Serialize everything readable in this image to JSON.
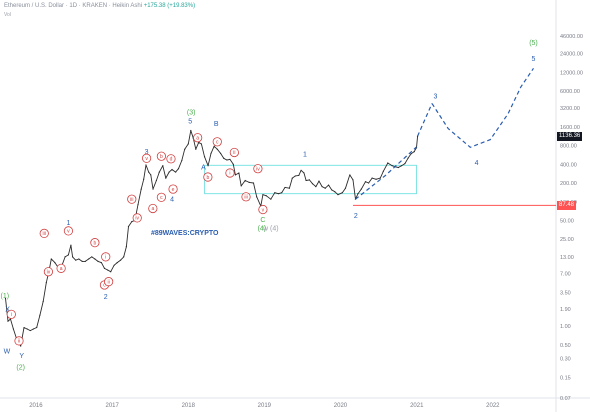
{
  "header": {
    "title": "Ethereum / U.S. Dollar · 1D · KRAKEN · Heikin Ashi",
    "change": "+175.38 (+19.83%)",
    "sub_label": "Vol"
  },
  "colors": {
    "price_line": "#2b2b2b",
    "wave_blue": "#2a5db0",
    "wave_red": "#d23c3c",
    "wave_green": "#4caf50",
    "channel_box": "#7fe3e3",
    "support_line": "#ff5252",
    "last_price_tag": "#131722",
    "support_tag": "#ff5252",
    "watermark": "#2a5db0"
  },
  "chart_data": {
    "type": "line",
    "title": "Ethereum / U.S. Dollar · 1D · KRAKEN · Heikin Ashi",
    "y_scale": "log",
    "ylim": [
      0.07,
      90000
    ],
    "xlim": [
      "2015-08-01",
      "2022-10-31"
    ],
    "x_ticks": [
      "2016",
      "2017",
      "2018",
      "2019",
      "2020",
      "2021",
      "2022"
    ],
    "y_ticks": [
      "0.07",
      "0.15",
      "0.30",
      "0.50",
      "1.00",
      "1.90",
      "3.50",
      "7.00",
      "13.00",
      "25.00",
      "50.00",
      "100.00",
      "200.00",
      "400.00",
      "800.00",
      "1600.00",
      "3200.00",
      "6000.00",
      "12000.00",
      "24000.00",
      "46000.00"
    ],
    "last_price": "1136.36",
    "support_level": "87.48",
    "series": [
      {
        "values": [
          [
            "2015-08-08",
            2.8
          ],
          [
            "2015-08-20",
            1.2
          ],
          [
            "2015-09-01",
            1.3
          ],
          [
            "2015-09-15",
            0.9
          ],
          [
            "2015-10-01",
            0.62
          ],
          [
            "2015-10-20",
            0.48
          ],
          [
            "2015-11-05",
            0.95
          ],
          [
            "2015-11-20",
            0.9
          ],
          [
            "2015-12-05",
            0.85
          ],
          [
            "2015-12-20",
            0.9
          ],
          [
            "2016-01-05",
            0.95
          ],
          [
            "2016-01-20",
            1.5
          ],
          [
            "2016-02-05",
            2.5
          ],
          [
            "2016-02-20",
            5.0
          ],
          [
            "2016-03-05",
            8.0
          ],
          [
            "2016-03-15",
            12.0
          ],
          [
            "2016-04-01",
            10.5
          ],
          [
            "2016-04-20",
            8.5
          ],
          [
            "2016-05-05",
            9.5
          ],
          [
            "2016-05-20",
            13.0
          ],
          [
            "2016-06-05",
            14.0
          ],
          [
            "2016-06-17",
            20.0
          ],
          [
            "2016-06-25",
            13.0
          ],
          [
            "2016-07-10",
            11.5
          ],
          [
            "2016-07-25",
            12.0
          ],
          [
            "2016-08-10",
            11.0
          ],
          [
            "2016-08-25",
            11.0
          ],
          [
            "2016-09-10",
            12.0
          ],
          [
            "2016-09-25",
            13.0
          ],
          [
            "2016-10-10",
            12.0
          ],
          [
            "2016-10-25",
            11.0
          ],
          [
            "2016-11-10",
            10.5
          ],
          [
            "2016-11-25",
            8.5
          ],
          [
            "2016-12-10",
            8.0
          ],
          [
            "2016-12-25",
            7.5
          ],
          [
            "2017-01-10",
            9.5
          ],
          [
            "2017-01-25",
            10.5
          ],
          [
            "2017-02-10",
            11.5
          ],
          [
            "2017-02-25",
            13.0
          ],
          [
            "2017-03-10",
            19.0
          ],
          [
            "2017-03-20",
            40.0
          ],
          [
            "2017-04-05",
            48.0
          ],
          [
            "2017-04-20",
            50.0
          ],
          [
            "2017-05-05",
            90.0
          ],
          [
            "2017-05-20",
            160.0
          ],
          [
            "2017-06-01",
            230.0
          ],
          [
            "2017-06-12",
            390.0
          ],
          [
            "2017-06-25",
            300.0
          ],
          [
            "2017-07-05",
            270.0
          ],
          [
            "2017-07-16",
            160.0
          ],
          [
            "2017-08-01",
            220.0
          ],
          [
            "2017-08-15",
            300.0
          ],
          [
            "2017-09-01",
            380.0
          ],
          [
            "2017-09-15",
            240.0
          ],
          [
            "2017-10-01",
            300.0
          ],
          [
            "2017-10-15",
            330.0
          ],
          [
            "2017-11-01",
            300.0
          ],
          [
            "2017-11-15",
            340.0
          ],
          [
            "2017-12-01",
            460.0
          ],
          [
            "2017-12-15",
            700.0
          ],
          [
            "2018-01-01",
            850.0
          ],
          [
            "2018-01-13",
            1400.0
          ],
          [
            "2018-01-25",
            1050.0
          ],
          [
            "2018-02-06",
            700.0
          ],
          [
            "2018-02-20",
            900.0
          ],
          [
            "2018-03-05",
            850.0
          ],
          [
            "2018-03-20",
            530.0
          ],
          [
            "2018-04-06",
            380.0
          ],
          [
            "2018-04-20",
            600.0
          ],
          [
            "2018-05-05",
            780.0
          ],
          [
            "2018-05-20",
            700.0
          ],
          [
            "2018-06-05",
            600.0
          ],
          [
            "2018-06-20",
            500.0
          ],
          [
            "2018-07-05",
            470.0
          ],
          [
            "2018-07-20",
            480.0
          ],
          [
            "2018-08-05",
            400.0
          ],
          [
            "2018-08-15",
            270.0
          ],
          [
            "2018-09-01",
            290.0
          ],
          [
            "2018-09-12",
            180.0
          ],
          [
            "2018-10-01",
            220.0
          ],
          [
            "2018-10-20",
            205.0
          ],
          [
            "2018-11-10",
            200.0
          ],
          [
            "2018-11-25",
            120.0
          ],
          [
            "2018-12-15",
            85.0
          ],
          [
            "2018-12-25",
            130.0
          ],
          [
            "2019-01-10",
            125.0
          ],
          [
            "2019-02-01",
            110.0
          ],
          [
            "2019-02-20",
            140.0
          ],
          [
            "2019-03-10",
            135.0
          ],
          [
            "2019-03-25",
            140.0
          ],
          [
            "2019-04-10",
            170.0
          ],
          [
            "2019-05-01",
            165.0
          ],
          [
            "2019-05-15",
            240.0
          ],
          [
            "2019-05-30",
            260.0
          ],
          [
            "2019-06-15",
            265.0
          ],
          [
            "2019-06-26",
            320.0
          ],
          [
            "2019-07-10",
            290.0
          ],
          [
            "2019-07-20",
            220.0
          ],
          [
            "2019-08-05",
            225.0
          ],
          [
            "2019-08-20",
            195.0
          ],
          [
            "2019-09-05",
            175.0
          ],
          [
            "2019-09-20",
            215.0
          ],
          [
            "2019-10-05",
            175.0
          ],
          [
            "2019-10-20",
            165.0
          ],
          [
            "2019-11-05",
            185.0
          ],
          [
            "2019-11-20",
            155.0
          ],
          [
            "2019-12-05",
            145.0
          ],
          [
            "2019-12-20",
            130.0
          ],
          [
            "2020-01-10",
            140.0
          ],
          [
            "2020-01-25",
            165.0
          ],
          [
            "2020-02-15",
            270.0
          ],
          [
            "2020-03-01",
            225.0
          ],
          [
            "2020-03-13",
            110.0
          ],
          [
            "2020-03-25",
            135.0
          ],
          [
            "2020-04-10",
            160.0
          ],
          [
            "2020-04-30",
            210.0
          ],
          [
            "2020-05-15",
            200.0
          ],
          [
            "2020-06-01",
            240.0
          ],
          [
            "2020-06-20",
            230.0
          ],
          [
            "2020-07-10",
            240.0
          ],
          [
            "2020-07-25",
            310.0
          ],
          [
            "2020-08-15",
            420.0
          ],
          [
            "2020-09-05",
            380.0
          ],
          [
            "2020-09-20",
            365.0
          ],
          [
            "2020-10-05",
            355.0
          ],
          [
            "2020-10-20",
            380.0
          ],
          [
            "2020-11-05",
            410.0
          ],
          [
            "2020-11-20",
            500.0
          ],
          [
            "2020-12-05",
            590.0
          ],
          [
            "2020-12-20",
            640.0
          ],
          [
            "2020-12-31",
            740.0
          ],
          [
            "2021-01-05",
            1136.36
          ]
        ]
      }
    ],
    "projections": [
      {
        "type": "dashed",
        "points": [
          [
            "2021-01-05",
            1136.36
          ],
          [
            "2021-03-15",
            3800.0
          ]
        ]
      },
      {
        "type": "dashed",
        "points": [
          [
            "2021-03-15",
            3800.0
          ],
          [
            "2021-06-01",
            1500.0
          ],
          [
            "2021-09-15",
            750.0
          ],
          [
            "2021-12-20",
            1000.0
          ],
          [
            "2022-03-15",
            2600.0
          ],
          [
            "2022-05-15",
            7000.0
          ],
          [
            "2022-07-15",
            14000.0
          ]
        ]
      },
      {
        "type": "dashed",
        "points": [
          [
            "2020-03-13",
            110.0
          ],
          [
            "2020-08-01",
            260.0
          ],
          [
            "2020-12-31",
            760.0
          ]
        ]
      }
    ],
    "channel_box": {
      "x": [
        "2018-03-20",
        "2020-12-31"
      ],
      "y": [
        135.0,
        385.0
      ]
    },
    "annotations": [
      {
        "text": "(1)",
        "x": "2015-08-05",
        "y": 3.1,
        "color": "green"
      },
      {
        "text": "X",
        "x": "2015-08-18",
        "y": 1.9,
        "color": "blue"
      },
      {
        "text": "i",
        "x": "2015-09-05",
        "y": 1.55,
        "color": "red",
        "circled": true
      },
      {
        "text": "W",
        "x": "2015-08-15",
        "y": 0.4,
        "color": "blue"
      },
      {
        "text": "ii",
        "x": "2015-10-12",
        "y": 0.58,
        "color": "red",
        "circled": true
      },
      {
        "text": "Y",
        "x": "2015-10-25",
        "y": 0.34,
        "color": "blue"
      },
      {
        "text": "(2)",
        "x": "2015-10-20",
        "y": 0.22,
        "color": "green"
      },
      {
        "text": "iii",
        "x": "2016-02-10",
        "y": 31.0,
        "color": "red",
        "circled": true
      },
      {
        "text": "iv",
        "x": "2016-03-01",
        "y": 7.5,
        "color": "red",
        "circled": true
      },
      {
        "text": "v",
        "x": "2016-06-05",
        "y": 34.0,
        "color": "red",
        "circled": true
      },
      {
        "text": "1",
        "x": "2016-06-05",
        "y": 46.0,
        "color": "blue"
      },
      {
        "text": "a",
        "x": "2016-05-01",
        "y": 8.5,
        "color": "red",
        "circled": true
      },
      {
        "text": "b",
        "x": "2016-10-10",
        "y": 22.0,
        "color": "red",
        "circled": true
      },
      {
        "text": "c",
        "x": "2016-11-25",
        "y": 4.6,
        "color": "red",
        "circled": true
      },
      {
        "text": "ii",
        "x": "2016-12-15",
        "y": 5.2,
        "color": "red",
        "circled": true
      },
      {
        "text": "i",
        "x": "2016-12-01",
        "y": 13.0,
        "color": "red",
        "circled": true
      },
      {
        "text": "2",
        "x": "2016-12-01",
        "y": 3.0,
        "color": "blue"
      },
      {
        "text": "iii",
        "x": "2017-04-05",
        "y": 110.0,
        "color": "red",
        "circled": true
      },
      {
        "text": "iv",
        "x": "2017-05-01",
        "y": 55.0,
        "color": "red",
        "circled": true
      },
      {
        "text": "3",
        "x": "2017-06-15",
        "y": 640.0,
        "color": "blue"
      },
      {
        "text": "v",
        "x": "2017-06-15",
        "y": 500.0,
        "color": "red",
        "circled": true
      },
      {
        "text": "a",
        "x": "2017-07-15",
        "y": 78.0,
        "color": "red",
        "circled": true
      },
      {
        "text": "b",
        "x": "2017-08-25",
        "y": 540.0,
        "color": "red",
        "circled": true
      },
      {
        "text": "c",
        "x": "2017-08-25",
        "y": 118.0,
        "color": "red",
        "circled": true
      },
      {
        "text": "d",
        "x": "2017-10-10",
        "y": 490.0,
        "color": "red",
        "circled": true
      },
      {
        "text": "e",
        "x": "2017-10-20",
        "y": 160.0,
        "color": "red",
        "circled": true
      },
      {
        "text": "4",
        "x": "2017-10-15",
        "y": 110.0,
        "color": "blue"
      },
      {
        "text": "(3)",
        "x": "2018-01-15",
        "y": 2750.0,
        "color": "green"
      },
      {
        "text": "5",
        "x": "2018-01-10",
        "y": 2000.0,
        "color": "blue"
      },
      {
        "text": "a",
        "x": "2018-02-15",
        "y": 1070.0,
        "color": "red",
        "circled": true
      },
      {
        "text": "B",
        "x": "2018-05-15",
        "y": 1800.0,
        "color": "blue"
      },
      {
        "text": "A",
        "x": "2018-03-15",
        "y": 360.0,
        "color": "blue"
      },
      {
        "text": "c",
        "x": "2018-05-20",
        "y": 920.0,
        "color": "red",
        "circled": true
      },
      {
        "text": "b",
        "x": "2018-04-05",
        "y": 250.0,
        "color": "red",
        "circled": true
      },
      {
        "text": "ii",
        "x": "2018-08-10",
        "y": 620.0,
        "color": "red",
        "circled": true
      },
      {
        "text": "i",
        "x": "2018-07-20",
        "y": 290.0,
        "color": "red",
        "circled": true
      },
      {
        "text": "iv",
        "x": "2018-12-01",
        "y": 340.0,
        "color": "red",
        "circled": true
      },
      {
        "text": "iii",
        "x": "2018-10-05",
        "y": 120.0,
        "color": "red",
        "circled": true
      },
      {
        "text": "v",
        "x": "2018-12-25",
        "y": 75.0,
        "color": "red",
        "circled": true
      },
      {
        "text": "C",
        "x": "2018-12-25",
        "y": 52.0,
        "color": "green"
      },
      {
        "text": "(4)",
        "x": "2018-12-20",
        "y": 38.0,
        "color": "green"
      },
      {
        "text": "w  (4)",
        "x": "2019-02-01",
        "y": 38.0,
        "color": "gray"
      },
      {
        "text": "1",
        "x": "2019-07-15",
        "y": 590.0,
        "color": "blue"
      },
      {
        "text": "2",
        "x": "2020-03-15",
        "y": 60.0,
        "color": "blue"
      },
      {
        "text": "3",
        "x": "2021-04-01",
        "y": 5000.0,
        "color": "blue"
      },
      {
        "text": "4",
        "x": "2021-10-15",
        "y": 430.0,
        "color": "blue"
      },
      {
        "text": "(5)",
        "x": "2022-07-15",
        "y": 36000.0,
        "color": "green"
      },
      {
        "text": "5",
        "x": "2022-07-15",
        "y": 20000.0,
        "color": "blue"
      },
      {
        "text": "#89WAVES:CRYPTO",
        "x": "2017-12-15",
        "y": 32.0,
        "color": "watermark"
      }
    ]
  }
}
